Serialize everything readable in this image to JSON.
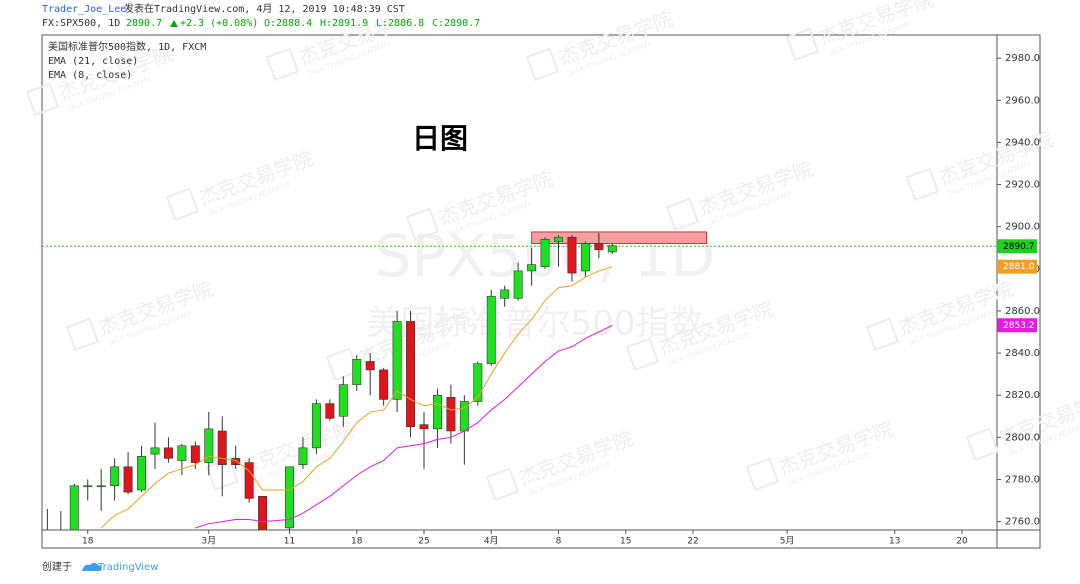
{
  "header": {
    "author": "Trader_Joe_Lee",
    "published": "发表在TradingView.com, 4月 12, 2019 10:48:39 CST",
    "symbol": "FX:SPX500, 1D",
    "price": "2890.7",
    "change": "+2.3 (+0.08%)",
    "open": "O:2888.4",
    "high": "H:2891.9",
    "low": "L:2886.8",
    "close": "C:2890.7"
  },
  "footer": {
    "created": "创建于",
    "brand": "TradingView"
  },
  "watermark": {
    "symbol": "SPX500, 1D",
    "name": "美国标准普尔500指数",
    "logo": "杰克交易学院",
    "logo_sub": "JACK TRADING ACADEMY"
  },
  "chart_data": {
    "type": "candlestick",
    "title": "日图",
    "instrument": "美国标准普尔500指数, 1D, FXCM",
    "up_color": "#1fe01f",
    "down_color": "#e0141a",
    "x": [
      -3,
      -2,
      -1,
      0,
      1,
      2,
      3,
      4,
      5,
      6,
      7,
      8,
      9,
      10,
      11,
      12,
      13,
      15,
      16,
      17,
      18,
      19,
      20,
      21,
      22,
      23,
      24,
      25,
      26,
      27,
      28,
      29,
      30,
      31,
      32,
      33,
      34,
      35,
      36,
      37,
      38,
      39
    ],
    "open": [
      2752,
      2752,
      2756,
      2777,
      2777,
      2777,
      2786,
      2775,
      2792,
      2795,
      2789,
      2796,
      2788,
      2803,
      2790,
      2788,
      2772,
      2757,
      2787,
      2795,
      2816,
      2810,
      2825,
      2836,
      2832,
      2818,
      2855,
      2806,
      2804,
      2819,
      2803,
      2817,
      2835,
      2866,
      2866,
      2879,
      2881,
      2893,
      2895,
      2879,
      2892,
      2888
    ],
    "high": [
      2766,
      2765,
      2778,
      2780,
      2785,
      2790,
      2793,
      2796,
      2807,
      2800,
      2797,
      2798,
      2812,
      2810,
      2796,
      2790,
      2772,
      2786,
      2800,
      2818,
      2818,
      2829,
      2839,
      2840,
      2833,
      2860,
      2860,
      2812,
      2823,
      2825,
      2820,
      2836,
      2870,
      2872,
      2883,
      2890,
      2895,
      2896,
      2896,
      2893,
      2897,
      2892
    ],
    "low": [
      2750,
      2750,
      2755,
      2770,
      2765,
      2770,
      2773,
      2774,
      2785,
      2788,
      2782,
      2785,
      2782,
      2772,
      2785,
      2769,
      2752,
      2755,
      2785,
      2792,
      2808,
      2805,
      2822,
      2820,
      2815,
      2812,
      2800,
      2785,
      2795,
      2797,
      2787,
      2815,
      2834,
      2862,
      2865,
      2872,
      2880,
      2881,
      2874,
      2876,
      2885,
      2887
    ],
    "close": [
      2755,
      2754,
      2777,
      2777,
      2777,
      2786,
      2774,
      2791,
      2795,
      2790,
      2796,
      2788,
      2804,
      2787,
      2787,
      2771,
      2755,
      2786,
      2795,
      2816,
      2809,
      2825,
      2837,
      2832,
      2818,
      2855,
      2805,
      2804,
      2820,
      2803,
      2817,
      2835,
      2867,
      2870,
      2879,
      2882,
      2894,
      2895,
      2878,
      2892,
      2889,
      2891
    ],
    "series": [
      {
        "name": "EMA (21, close)",
        "color": "#e619e6",
        "last_label": "2853.2",
        "values": [
          null,
          null,
          null,
          null,
          null,
          null,
          null,
          null,
          null,
          null,
          null,
          2757,
          2759,
          2760,
          2761,
          2761,
          2760,
          2761,
          2764,
          2768,
          2772,
          2777,
          2782,
          2786,
          2789,
          2795,
          2796,
          2797,
          2799,
          2800,
          2803,
          2807,
          2813,
          2818,
          2824,
          2830,
          2836,
          2841,
          2843,
          2847,
          2850,
          2853.2
        ]
      },
      {
        "name": "EMA (8, close)",
        "color": "#f0a020",
        "last_label": "2881.0",
        "values": [
          null,
          null,
          null,
          null,
          2757,
          2763,
          2766,
          2772,
          2778,
          2783,
          2785,
          2787,
          2791,
          2790,
          2789,
          2784,
          2775,
          2775,
          2779,
          2786,
          2790,
          2798,
          2807,
          2812,
          2813,
          2822,
          2818,
          2815,
          2816,
          2813,
          2814,
          2819,
          2830,
          2840,
          2849,
          2856,
          2865,
          2871,
          2872,
          2876,
          2879,
          2881
        ]
      }
    ],
    "price_line": {
      "value": 2890.7,
      "label": "2890.7",
      "color": "#1fd01f"
    },
    "zone": {
      "x": [
        33,
        46
      ],
      "y": [
        2892,
        2897.5
      ],
      "color": "#f4a0a0"
    },
    "xlim": [
      -3.4,
      67.6
    ],
    "ylim": [
      2756,
      2991
    ],
    "xticks": [
      {
        "value": 0,
        "label": "18"
      },
      {
        "value": 9,
        "label": "3月"
      },
      {
        "value": 15,
        "label": "11"
      },
      {
        "value": 20,
        "label": "18"
      },
      {
        "value": 25,
        "label": "25"
      },
      {
        "value": 30,
        "label": "4月"
      },
      {
        "value": 35,
        "label": "8"
      },
      {
        "value": 40,
        "label": "15"
      },
      {
        "value": 45,
        "label": "22"
      },
      {
        "value": 52,
        "label": "5月"
      },
      {
        "value": 60,
        "label": "13"
      },
      {
        "value": 65,
        "label": "20"
      }
    ],
    "yticks": [
      {
        "value": 2760,
        "label": "2760.0"
      },
      {
        "value": 2780,
        "label": "2780.0"
      },
      {
        "value": 2800,
        "label": "2800.0"
      },
      {
        "value": 2820,
        "label": "2820.0"
      },
      {
        "value": 2840,
        "label": "2840.0"
      },
      {
        "value": 2860,
        "label": "2860.0"
      },
      {
        "value": 2880,
        "label": "2880.0"
      },
      {
        "value": 2900,
        "label": "2900.0"
      },
      {
        "value": 2920,
        "label": "2920.0"
      },
      {
        "value": 2940,
        "label": "2940.0"
      },
      {
        "value": 2960,
        "label": "2960.0"
      },
      {
        "value": 2980,
        "label": "2980.0"
      }
    ]
  }
}
